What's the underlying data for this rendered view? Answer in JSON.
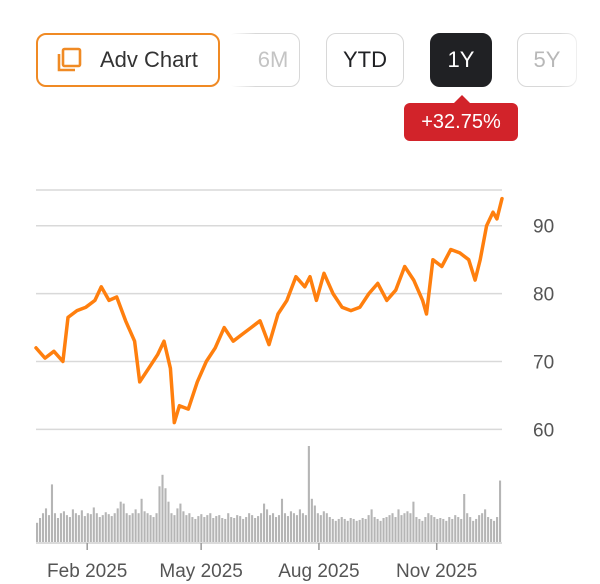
{
  "range_selector": {
    "adv_chart_label": "Adv Chart",
    "adv_chart_icon": "layers-icon",
    "ranges": [
      "6M",
      "YTD",
      "1Y",
      "5Y"
    ],
    "selected": "1Y"
  },
  "change_badge": {
    "text": "+32.75%",
    "color": "#d2232a"
  },
  "colors": {
    "line": "#ff7f0e",
    "accent": "#f08a24",
    "volume": "#b5b5b5",
    "grid": "#d9d9d9"
  },
  "chart_data": {
    "type": "line",
    "title": "",
    "xlabel": "",
    "ylabel": "",
    "y_ticks": [
      60,
      70,
      80,
      90
    ],
    "ylim": [
      58,
      96
    ],
    "y_axis_side": "right",
    "x_tick_labels": [
      "Feb 2025",
      "May 2025",
      "Aug 2025",
      "Nov 2025"
    ],
    "x_ticks": [
      "2025-02-01",
      "2025-05-01",
      "2025-08-01",
      "2025-11-01"
    ],
    "x_range": [
      "2024-12-23",
      "2025-12-22"
    ],
    "grid": true,
    "price": [
      {
        "x": "2024-12-23",
        "y": 72
      },
      {
        "x": "2024-12-30",
        "y": 70.5
      },
      {
        "x": "2025-01-06",
        "y": 71.5
      },
      {
        "x": "2025-01-13",
        "y": 70
      },
      {
        "x": "2025-01-17",
        "y": 76.5
      },
      {
        "x": "2025-01-24",
        "y": 77.5
      },
      {
        "x": "2025-01-31",
        "y": 78
      },
      {
        "x": "2025-02-07",
        "y": 79
      },
      {
        "x": "2025-02-12",
        "y": 81
      },
      {
        "x": "2025-02-18",
        "y": 79
      },
      {
        "x": "2025-02-24",
        "y": 79.5
      },
      {
        "x": "2025-03-03",
        "y": 76
      },
      {
        "x": "2025-03-10",
        "y": 73
      },
      {
        "x": "2025-03-14",
        "y": 67
      },
      {
        "x": "2025-03-21",
        "y": 69
      },
      {
        "x": "2025-03-28",
        "y": 71
      },
      {
        "x": "2025-04-02",
        "y": 73
      },
      {
        "x": "2025-04-07",
        "y": 69
      },
      {
        "x": "2025-04-10",
        "y": 61
      },
      {
        "x": "2025-04-14",
        "y": 63.5
      },
      {
        "x": "2025-04-21",
        "y": 63
      },
      {
        "x": "2025-04-28",
        "y": 67
      },
      {
        "x": "2025-05-05",
        "y": 70
      },
      {
        "x": "2025-05-12",
        "y": 72
      },
      {
        "x": "2025-05-19",
        "y": 75
      },
      {
        "x": "2025-05-26",
        "y": 73
      },
      {
        "x": "2025-06-02",
        "y": 74
      },
      {
        "x": "2025-06-09",
        "y": 75
      },
      {
        "x": "2025-06-16",
        "y": 76
      },
      {
        "x": "2025-06-23",
        "y": 72.5
      },
      {
        "x": "2025-06-30",
        "y": 77
      },
      {
        "x": "2025-07-07",
        "y": 79
      },
      {
        "x": "2025-07-14",
        "y": 82.5
      },
      {
        "x": "2025-07-21",
        "y": 81
      },
      {
        "x": "2025-07-25",
        "y": 82.5
      },
      {
        "x": "2025-07-30",
        "y": 79
      },
      {
        "x": "2025-08-05",
        "y": 83
      },
      {
        "x": "2025-08-12",
        "y": 80
      },
      {
        "x": "2025-08-19",
        "y": 78
      },
      {
        "x": "2025-08-26",
        "y": 77.5
      },
      {
        "x": "2025-09-02",
        "y": 78
      },
      {
        "x": "2025-09-09",
        "y": 80
      },
      {
        "x": "2025-09-16",
        "y": 81.5
      },
      {
        "x": "2025-09-23",
        "y": 79
      },
      {
        "x": "2025-09-30",
        "y": 80.5
      },
      {
        "x": "2025-10-07",
        "y": 84
      },
      {
        "x": "2025-10-14",
        "y": 82
      },
      {
        "x": "2025-10-21",
        "y": 79
      },
      {
        "x": "2025-10-24",
        "y": 77
      },
      {
        "x": "2025-10-29",
        "y": 85
      },
      {
        "x": "2025-11-05",
        "y": 84
      },
      {
        "x": "2025-11-12",
        "y": 86.5
      },
      {
        "x": "2025-11-19",
        "y": 86
      },
      {
        "x": "2025-11-26",
        "y": 85
      },
      {
        "x": "2025-12-01",
        "y": 82
      },
      {
        "x": "2025-12-05",
        "y": 85
      },
      {
        "x": "2025-12-10",
        "y": 90
      },
      {
        "x": "2025-12-15",
        "y": 92
      },
      {
        "x": "2025-12-18",
        "y": 91
      },
      {
        "x": "2025-12-22",
        "y": 94
      }
    ],
    "volume_relative": [
      0.2,
      0.25,
      0.3,
      0.35,
      0.28,
      0.6,
      0.3,
      0.25,
      0.3,
      0.32,
      0.28,
      0.26,
      0.34,
      0.3,
      0.28,
      0.33,
      0.27,
      0.3,
      0.29,
      0.36,
      0.3,
      0.26,
      0.28,
      0.31,
      0.29,
      0.27,
      0.3,
      0.35,
      0.42,
      0.4,
      0.3,
      0.28,
      0.3,
      0.34,
      0.3,
      0.45,
      0.32,
      0.3,
      0.28,
      0.26,
      0.3,
      0.58,
      0.7,
      0.56,
      0.42,
      0.3,
      0.28,
      0.35,
      0.4,
      0.32,
      0.28,
      0.3,
      0.26,
      0.24,
      0.27,
      0.29,
      0.26,
      0.28,
      0.3,
      0.25,
      0.27,
      0.28,
      0.25,
      0.24,
      0.3,
      0.26,
      0.25,
      0.28,
      0.27,
      0.24,
      0.26,
      0.3,
      0.28,
      0.25,
      0.27,
      0.3,
      0.4,
      0.34,
      0.28,
      0.3,
      0.26,
      0.28,
      0.45,
      0.3,
      0.27,
      0.32,
      0.3,
      0.28,
      0.34,
      0.3,
      0.28,
      1.0,
      0.45,
      0.38,
      0.3,
      0.28,
      0.32,
      0.3,
      0.26,
      0.24,
      0.22,
      0.24,
      0.26,
      0.24,
      0.22,
      0.25,
      0.24,
      0.22,
      0.23,
      0.25,
      0.24,
      0.28,
      0.34,
      0.26,
      0.24,
      0.22,
      0.25,
      0.26,
      0.28,
      0.3,
      0.26,
      0.34,
      0.28,
      0.3,
      0.32,
      0.3,
      0.42,
      0.26,
      0.24,
      0.22,
      0.26,
      0.3,
      0.28,
      0.26,
      0.24,
      0.25,
      0.24,
      0.22,
      0.26,
      0.24,
      0.28,
      0.26,
      0.24,
      0.5,
      0.3,
      0.26,
      0.22,
      0.24,
      0.28,
      0.3,
      0.34,
      0.26,
      0.24,
      0.22,
      0.26,
      0.64
    ]
  }
}
